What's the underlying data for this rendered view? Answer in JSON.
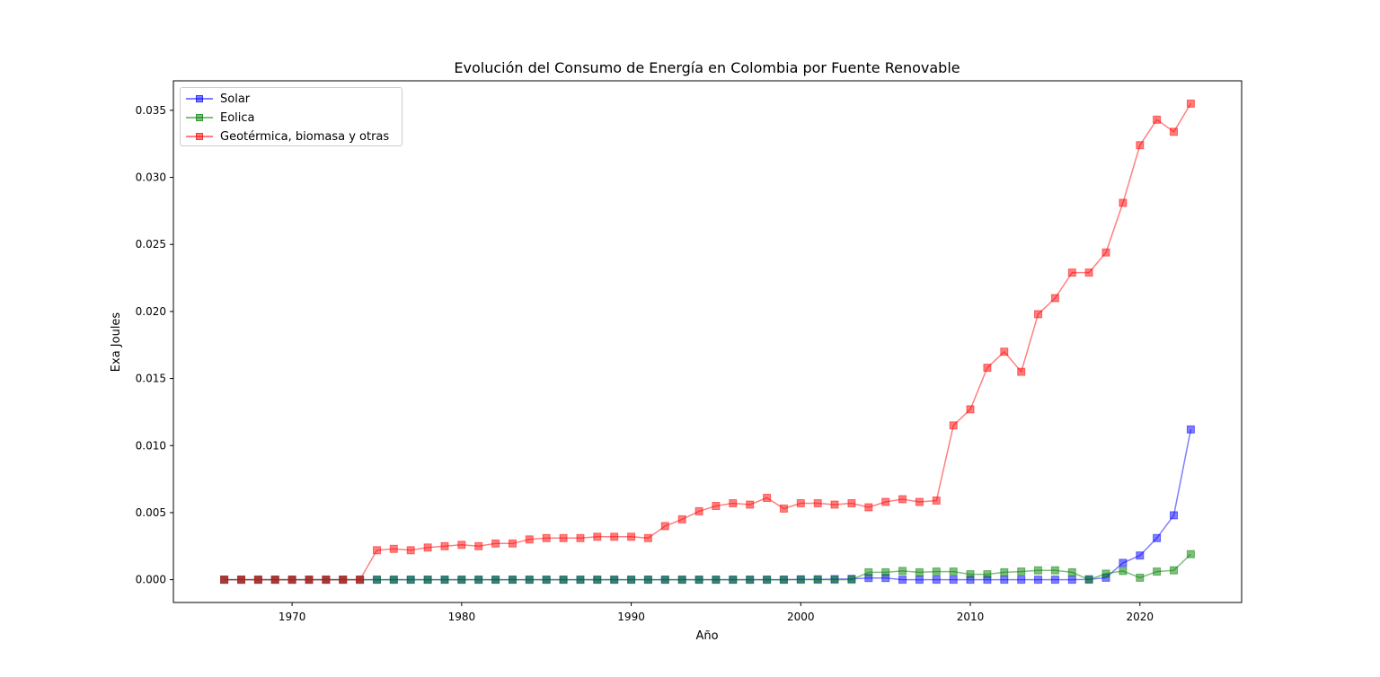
{
  "chart_data": {
    "type": "line",
    "title": "Evolución del Consumo de Energía en Colombia por Fuente Renovable",
    "xlabel": "Año",
    "ylabel": "Exa Joules",
    "xlim": [
      1963,
      2026
    ],
    "ylim": [
      -0.0017,
      0.0372
    ],
    "xticks": [
      "1970",
      "1980",
      "1990",
      "2000",
      "2010",
      "2020"
    ],
    "yticks": [
      "0.000",
      "0.005",
      "0.010",
      "0.015",
      "0.020",
      "0.025",
      "0.030",
      "0.035"
    ],
    "grid": false,
    "legend_position": "upper-left",
    "x": [
      1966,
      1967,
      1968,
      1969,
      1970,
      1971,
      1972,
      1973,
      1974,
      1975,
      1976,
      1977,
      1978,
      1979,
      1980,
      1981,
      1982,
      1983,
      1984,
      1985,
      1986,
      1987,
      1988,
      1989,
      1990,
      1991,
      1992,
      1993,
      1994,
      1995,
      1996,
      1997,
      1998,
      1999,
      2000,
      2001,
      2002,
      2003,
      2004,
      2005,
      2006,
      2007,
      2008,
      2009,
      2010,
      2011,
      2012,
      2013,
      2014,
      2015,
      2016,
      2017,
      2018,
      2019,
      2020,
      2021,
      2022,
      2023
    ],
    "series": [
      {
        "name": "Solar",
        "color": "#0000ff",
        "values": [
          0,
          0,
          0,
          0,
          0,
          0,
          0,
          0,
          0,
          0,
          0,
          0,
          0,
          0,
          0,
          0,
          0,
          0,
          0,
          0,
          0,
          0,
          0,
          0,
          0,
          0,
          0,
          0,
          0,
          0,
          0,
          0,
          0,
          0,
          3e-05,
          3e-05,
          4e-05,
          6e-05,
          0.00013,
          0.00013,
          0,
          0,
          0,
          0,
          0,
          0,
          0,
          0,
          0,
          0,
          0,
          3e-05,
          0.00015,
          0.00125,
          0.0018,
          0.0031,
          0.0048,
          0.0112
        ]
      },
      {
        "name": "Eolica",
        "color": "#008000",
        "values": [
          0,
          0,
          0,
          0,
          0,
          0,
          0,
          0,
          0,
          0,
          0,
          0,
          0,
          0,
          0,
          0,
          0,
          0,
          0,
          0,
          0,
          0,
          0,
          0,
          0,
          0,
          0,
          0,
          0,
          0,
          0,
          0,
          0,
          0,
          0,
          0,
          0,
          0,
          0.00055,
          0.00055,
          0.00065,
          0.00055,
          0.0006,
          0.0006,
          0.0004,
          0.0004,
          0.00055,
          0.0006,
          0.0007,
          0.0007,
          0.00055,
          0,
          0.00045,
          0.00065,
          0.00015,
          0.0006,
          0.0007,
          0.0019
        ]
      },
      {
        "name": "Geotérmica, biomasa y otras",
        "color": "#ff0000",
        "values": [
          0,
          0,
          0,
          0,
          0,
          0,
          0,
          0,
          0,
          0.0022,
          0.0023,
          0.0022,
          0.0024,
          0.0025,
          0.0026,
          0.0025,
          0.0027,
          0.0027,
          0.003,
          0.0031,
          0.0031,
          0.0031,
          0.0032,
          0.0032,
          0.0032,
          0.0031,
          0.004,
          0.0045,
          0.0051,
          0.0055,
          0.0057,
          0.0056,
          0.0061,
          0.0053,
          0.0057,
          0.0057,
          0.0056,
          0.0057,
          0.0054,
          0.0058,
          0.006,
          0.0058,
          0.0059,
          0.0115,
          0.0127,
          0.0158,
          0.017,
          0.0155,
          0.0198,
          0.021,
          0.0229,
          0.0229,
          0.0244,
          0.0281,
          0.0324,
          0.0343,
          0.0334,
          0.0355
        ]
      }
    ]
  }
}
